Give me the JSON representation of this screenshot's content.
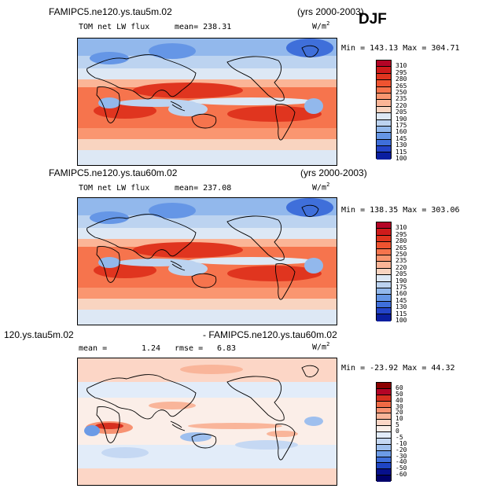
{
  "season": "DJF",
  "panels": [
    {
      "case_name": "FAMIPC5.ne120.ys.tau5m.02",
      "years": "(yrs 2000-2003)",
      "variable_label": "TOM net LW flux",
      "stat_label": "mean= 238.31",
      "unit_base": "W/m",
      "unit_exp": "2",
      "minmax": "Min = 143.13 Max = 304.71",
      "levels": [
        "310",
        "295",
        "280",
        "265",
        "250",
        "235",
        "220",
        "205",
        "190",
        "175",
        "160",
        "145",
        "130",
        "115",
        "100"
      ],
      "colors": [
        "#b40426",
        "#cf1b1b",
        "#e0351f",
        "#ef5330",
        "#f6744d",
        "#fa9670",
        "#fbb597",
        "#f9d4c0",
        "#dde8f5",
        "#bcd3f0",
        "#92b8ec",
        "#6596e6",
        "#3f6fda",
        "#2444c8",
        "#0a1ea0"
      ]
    },
    {
      "case_name": "FAMIPC5.ne120.ys.tau60m.02",
      "years": "(yrs 2000-2003)",
      "variable_label": "TOM net LW flux",
      "stat_label": "mean= 237.08",
      "unit_base": "W/m",
      "unit_exp": "2",
      "minmax": "Min = 138.35 Max = 303.06",
      "levels": [
        "310",
        "295",
        "280",
        "265",
        "250",
        "235",
        "220",
        "205",
        "190",
        "175",
        "160",
        "145",
        "130",
        "115",
        "100"
      ],
      "colors": [
        "#b40426",
        "#cf1b1b",
        "#e0351f",
        "#ef5330",
        "#f6744d",
        "#fa9670",
        "#fbb597",
        "#f9d4c0",
        "#dde8f5",
        "#bcd3f0",
        "#92b8ec",
        "#6596e6",
        "#3f6fda",
        "#2444c8",
        "#0a1ea0"
      ]
    },
    {
      "case_left": "120.ys.tau5m.02",
      "case_right": "- FAMIPC5.ne120.ys.tau60m.02",
      "mean_label": "mean =",
      "mean_value": "1.24",
      "rmse_label": "rmse =",
      "rmse_value": "6.83",
      "unit_base": "W/m",
      "unit_exp": "2",
      "minmax": "Min = -23.92 Max = 44.32",
      "levels": [
        "60",
        "50",
        "40",
        "30",
        "20",
        "10",
        "5",
        "0",
        "-5",
        "-10",
        "-20",
        "-30",
        "-40",
        "-50",
        "-60"
      ],
      "colors": [
        "#8b0000",
        "#b40426",
        "#d7301f",
        "#ef6a45",
        "#f79272",
        "#f9b59a",
        "#fcd6c6",
        "#fbeee8",
        "#e2ecf9",
        "#c5d8f3",
        "#9ebfee",
        "#6c9be6",
        "#3f6fda",
        "#1f45c4",
        "#07108c",
        "#00006a"
      ]
    }
  ]
}
